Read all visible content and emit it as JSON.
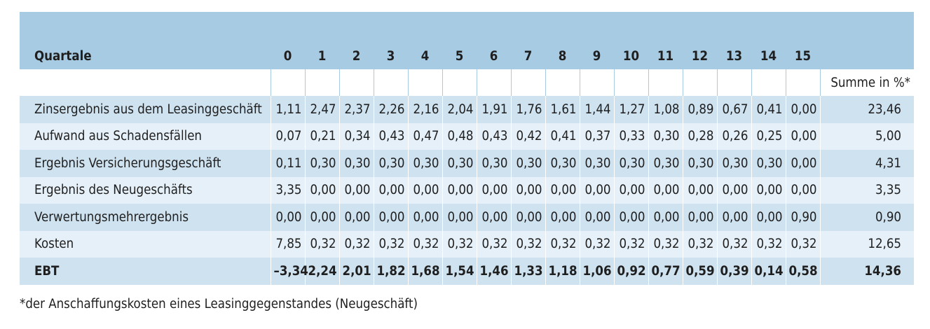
{
  "table": {
    "header_label": "Quartale",
    "quarters": [
      "0",
      "1",
      "2",
      "3",
      "4",
      "5",
      "6",
      "7",
      "8",
      "9",
      "10",
      "11",
      "12",
      "13",
      "14",
      "15"
    ],
    "sum_label": "Summe in %*",
    "rows": [
      {
        "label": "Zinsergebnis aus dem Leasinggeschäft",
        "values": [
          "1,11",
          "2,47",
          "2,37",
          "2,26",
          "2,16",
          "2,04",
          "1,91",
          "1,76",
          "1,61",
          "1,44",
          "1,27",
          "1,08",
          "0,89",
          "0,67",
          "0,41",
          "0,00"
        ],
        "sum": "23,46"
      },
      {
        "label": "Aufwand aus Schadensfällen",
        "values": [
          "0,07",
          "0,21",
          "0,34",
          "0,43",
          "0,47",
          "0,48",
          "0,43",
          "0,42",
          "0,41",
          "0,37",
          "0,33",
          "0,30",
          "0,28",
          "0,26",
          "0,25",
          "0,00"
        ],
        "sum": "5,00"
      },
      {
        "label": "Ergebnis Versicherungsgeschäft",
        "values": [
          "0,11",
          "0,30",
          "0,30",
          "0,30",
          "0,30",
          "0,30",
          "0,30",
          "0,30",
          "0,30",
          "0,30",
          "0,30",
          "0,30",
          "0,30",
          "0,30",
          "0,30",
          "0,00"
        ],
        "sum": "4,31"
      },
      {
        "label": "Ergebnis des Neugeschäfts",
        "values": [
          "3,35",
          "0,00",
          "0,00",
          "0,00",
          "0,00",
          "0,00",
          "0,00",
          "0,00",
          "0,00",
          "0,00",
          "0,00",
          "0,00",
          "0,00",
          "0,00",
          "0,00",
          "0,00"
        ],
        "sum": "3,35"
      },
      {
        "label": "Verwertungsmehrergebnis",
        "values": [
          "0,00",
          "0,00",
          "0,00",
          "0,00",
          "0,00",
          "0,00",
          "0,00",
          "0,00",
          "0,00",
          "0,00",
          "0,00",
          "0,00",
          "0,00",
          "0,00",
          "0,00",
          "0,90"
        ],
        "sum": "0,90"
      },
      {
        "label": "Kosten",
        "values": [
          "7,85",
          "0,32",
          "0,32",
          "0,32",
          "0,32",
          "0,32",
          "0,32",
          "0,32",
          "0,32",
          "0,32",
          "0,32",
          "0,32",
          "0,32",
          "0,32",
          "0,32",
          "0,32"
        ],
        "sum": "12,65"
      },
      {
        "label": "EBT",
        "values": [
          "–3,34",
          "2,24",
          "2,01",
          "1,82",
          "1,68",
          "1,54",
          "1,46",
          "1,33",
          "1,18",
          "1,06",
          "0,92",
          "0,77",
          "0,59",
          "0,39",
          "0,14",
          "0,58"
        ],
        "sum": "14,36",
        "bold": true
      }
    ]
  },
  "footnote": "*der Anschaffungskosten eines Leasinggegenstandes (Neugeschäft)",
  "colors": {
    "header": "#a7cbe3",
    "row_dark": "#cfe2f0",
    "row_light": "#e6f0f8"
  }
}
